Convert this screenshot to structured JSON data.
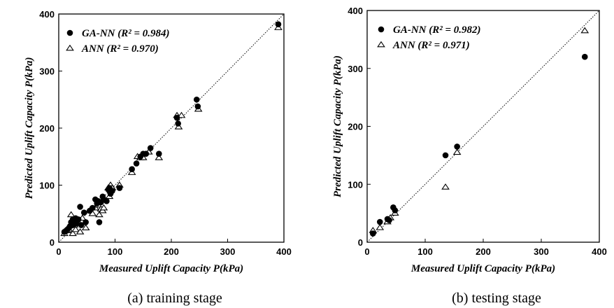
{
  "chart_data": [
    {
      "type": "scatter",
      "caption": "(a) training stage",
      "xlabel": "Measured Uplift Capacity P(kPa)",
      "ylabel": "Predicted Uplift Capacity P(kPa)",
      "xlim": [
        0,
        400
      ],
      "ylim": [
        0,
        400
      ],
      "xticks": [
        0,
        100,
        200,
        300,
        400
      ],
      "yticks": [
        0,
        100,
        200,
        300,
        400
      ],
      "grid": false,
      "legend_position": "top-left",
      "reference_line": "y = x (dotted)",
      "series": [
        {
          "name": "GA-NN",
          "legend_label": "GA-NN (R² = 0.984)",
          "marker": "filled-circle",
          "points": [
            [
              10,
              18
            ],
            [
              13,
              20
            ],
            [
              15,
              22
            ],
            [
              18,
              25
            ],
            [
              20,
              28
            ],
            [
              22,
              35
            ],
            [
              25,
              30
            ],
            [
              25,
              40
            ],
            [
              28,
              38
            ],
            [
              30,
              42
            ],
            [
              32,
              33
            ],
            [
              35,
              40
            ],
            [
              38,
              62
            ],
            [
              40,
              30
            ],
            [
              45,
              52
            ],
            [
              48,
              35
            ],
            [
              55,
              55
            ],
            [
              60,
              60
            ],
            [
              65,
              75
            ],
            [
              68,
              68
            ],
            [
              70,
              72
            ],
            [
              72,
              35
            ],
            [
              75,
              70
            ],
            [
              78,
              80
            ],
            [
              80,
              75
            ],
            [
              85,
              72
            ],
            [
              88,
              92
            ],
            [
              90,
              95
            ],
            [
              92,
              85
            ],
            [
              95,
              90
            ],
            [
              108,
              95
            ],
            [
              130,
              128
            ],
            [
              138,
              138
            ],
            [
              145,
              150
            ],
            [
              150,
              155
            ],
            [
              155,
              155
            ],
            [
              163,
              165
            ],
            [
              178,
              155
            ],
            [
              210,
              218
            ],
            [
              212,
              208
            ],
            [
              245,
              250
            ],
            [
              247,
              238
            ],
            [
              390,
              382
            ]
          ]
        },
        {
          "name": "ANN",
          "legend_label": "ANN (R² = 0.970)",
          "marker": "open-triangle",
          "points": [
            [
              10,
              15
            ],
            [
              15,
              20
            ],
            [
              18,
              22
            ],
            [
              22,
              48
            ],
            [
              25,
              15
            ],
            [
              28,
              30
            ],
            [
              30,
              22
            ],
            [
              35,
              35
            ],
            [
              38,
              18
            ],
            [
              42,
              42
            ],
            [
              48,
              25
            ],
            [
              55,
              55
            ],
            [
              60,
              50
            ],
            [
              65,
              60
            ],
            [
              70,
              65
            ],
            [
              72,
              48
            ],
            [
              75,
              58
            ],
            [
              78,
              55
            ],
            [
              80,
              60
            ],
            [
              88,
              95
            ],
            [
              90,
              80
            ],
            [
              92,
              100
            ],
            [
              95,
              95
            ],
            [
              108,
              100
            ],
            [
              130,
              122
            ],
            [
              140,
              150
            ],
            [
              145,
              148
            ],
            [
              150,
              148
            ],
            [
              160,
              158
            ],
            [
              178,
              148
            ],
            [
              210,
              222
            ],
            [
              213,
              202
            ],
            [
              218,
              222
            ],
            [
              248,
              233
            ],
            [
              390,
              376
            ]
          ]
        }
      ]
    },
    {
      "type": "scatter",
      "caption": "(b) testing stage",
      "xlabel": "Measured Uplift Capacity P(kPa)",
      "ylabel": "Predicted Uplift Capacity P(kPa)",
      "xlim": [
        0,
        400
      ],
      "ylim": [
        0,
        400
      ],
      "xticks": [
        0,
        100,
        200,
        300,
        400
      ],
      "yticks": [
        0,
        100,
        200,
        300,
        400
      ],
      "grid": false,
      "legend_position": "top-left",
      "reference_line": "y = x (dotted)",
      "series": [
        {
          "name": "GA-NN",
          "legend_label": "GA-NN (R² = 0.982)",
          "marker": "filled-circle",
          "points": [
            [
              10,
              15
            ],
            [
              22,
              35
            ],
            [
              35,
              40
            ],
            [
              38,
              38
            ],
            [
              45,
              60
            ],
            [
              48,
              55
            ],
            [
              135,
              150
            ],
            [
              155,
              165
            ],
            [
              375,
              320
            ]
          ]
        },
        {
          "name": "ANN",
          "legend_label": "ANN (R² = 0.971)",
          "marker": "open-triangle",
          "points": [
            [
              10,
              20
            ],
            [
              22,
              25
            ],
            [
              35,
              35
            ],
            [
              40,
              42
            ],
            [
              48,
              50
            ],
            [
              135,
              95
            ],
            [
              155,
              155
            ],
            [
              375,
              365
            ]
          ]
        }
      ]
    }
  ]
}
